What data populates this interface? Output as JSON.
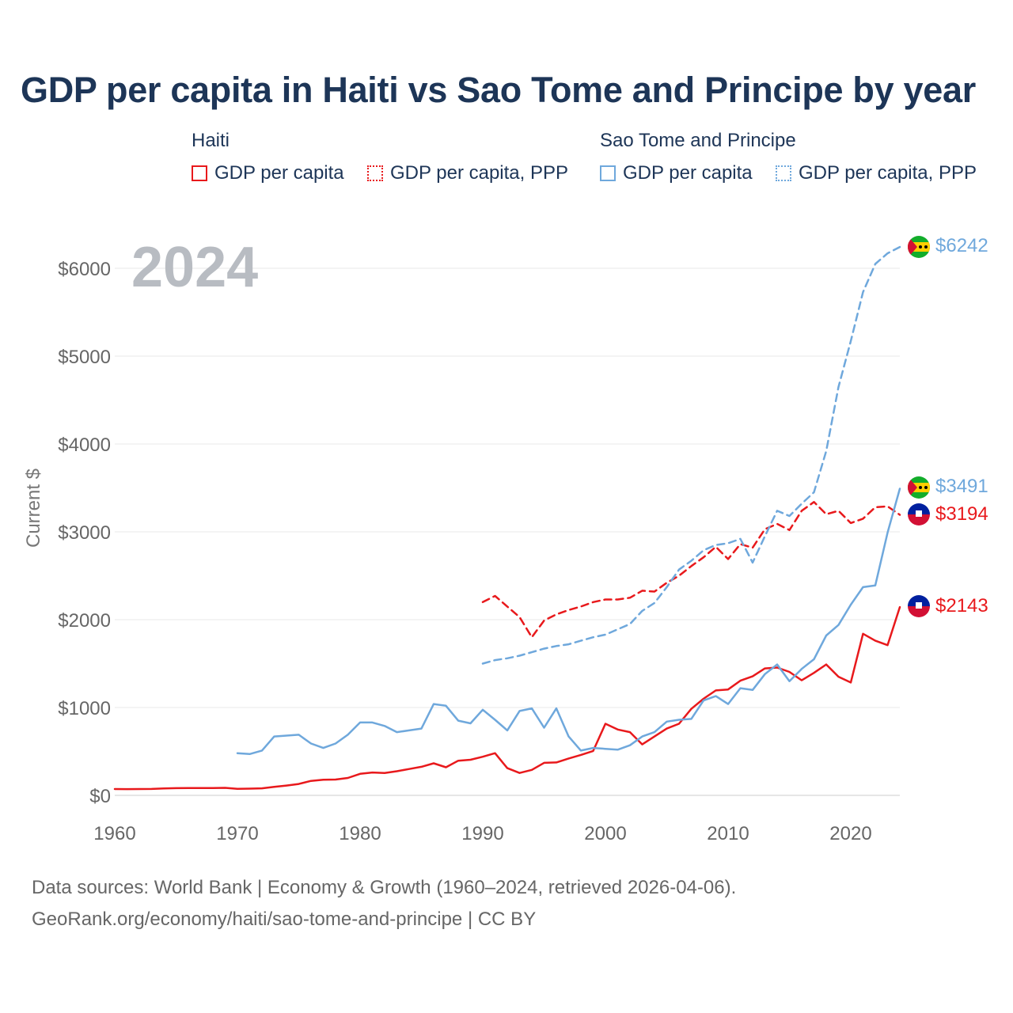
{
  "title": "GDP per capita in Haiti vs Sao Tome and Principe by year",
  "legend": {
    "groups": [
      {
        "name": "Haiti",
        "items": [
          {
            "label": "GDP per capita",
            "style": "solid",
            "color": "#e8191c"
          },
          {
            "label": "GDP per capita, PPP",
            "style": "dotted",
            "color": "#e8191c"
          }
        ]
      },
      {
        "name": "Sao Tome and Principe",
        "items": [
          {
            "label": "GDP per capita",
            "style": "solid",
            "color": "#6fa8dc"
          },
          {
            "label": "GDP per capita, PPP",
            "style": "dotted",
            "color": "#6fa8dc"
          }
        ]
      }
    ]
  },
  "source": {
    "line1": "Data sources: World Bank | Economy & Growth (1960–2024, retrieved 2026-04-06).",
    "line2": "GeoRank.org/economy/haiti/sao-tome-and-principe | CC BY"
  },
  "chart_data": {
    "type": "line",
    "title": "GDP per capita in Haiti vs Sao Tome and Principe by year",
    "year_label": "2024",
    "xlabel": "",
    "ylabel": "Current $",
    "xlim": [
      1960,
      2024
    ],
    "ylim": [
      0,
      6400
    ],
    "x_ticks": [
      1960,
      1970,
      1980,
      1990,
      2000,
      2010,
      2020
    ],
    "y_ticks": [
      0,
      1000,
      2000,
      3000,
      4000,
      5000,
      6000
    ],
    "y_tick_labels": [
      "$0",
      "$1000",
      "$2000",
      "$3000",
      "$4000",
      "$5000",
      "$6000"
    ],
    "grid": true,
    "series": [
      {
        "name": "Haiti GDP per capita",
        "color": "#e8191c",
        "dashed": false,
        "end_label": "$2143",
        "x": [
          1960,
          1961,
          1962,
          1963,
          1964,
          1965,
          1966,
          1967,
          1968,
          1969,
          1970,
          1971,
          1972,
          1973,
          1974,
          1975,
          1976,
          1977,
          1978,
          1979,
          1980,
          1981,
          1982,
          1983,
          1984,
          1985,
          1986,
          1987,
          1988,
          1989,
          1990,
          1991,
          1992,
          1993,
          1994,
          1995,
          1996,
          1997,
          1998,
          1999,
          2000,
          2001,
          2002,
          2003,
          2004,
          2005,
          2006,
          2007,
          2008,
          2009,
          2010,
          2011,
          2012,
          2013,
          2014,
          2015,
          2016,
          2017,
          2018,
          2019,
          2020,
          2021,
          2022,
          2023,
          2024
        ],
        "values": [
          72,
          71,
          72,
          73,
          78,
          82,
          84,
          83,
          84,
          86,
          74,
          77,
          80,
          96,
          112,
          130,
          165,
          178,
          180,
          198,
          245,
          260,
          255,
          275,
          300,
          325,
          365,
          320,
          395,
          405,
          440,
          480,
          310,
          255,
          290,
          370,
          375,
          420,
          460,
          505,
          815,
          750,
          720,
          580,
          670,
          760,
          815,
          985,
          1100,
          1195,
          1205,
          1305,
          1355,
          1445,
          1455,
          1405,
          1310,
          1395,
          1490,
          1350,
          1285,
          1840,
          1760,
          1710,
          2143
        ]
      },
      {
        "name": "Haiti GDP per capita, PPP",
        "color": "#e8191c",
        "dashed": true,
        "end_label": "$3194",
        "x": [
          1990,
          1991,
          1992,
          1993,
          1994,
          1995,
          1996,
          1997,
          1998,
          1999,
          2000,
          2001,
          2002,
          2003,
          2004,
          2005,
          2006,
          2007,
          2008,
          2009,
          2010,
          2011,
          2012,
          2013,
          2014,
          2015,
          2016,
          2017,
          2018,
          2019,
          2020,
          2021,
          2022,
          2023,
          2024
        ],
        "values": [
          2200,
          2270,
          2150,
          2030,
          1800,
          1990,
          2060,
          2110,
          2150,
          2200,
          2230,
          2230,
          2250,
          2330,
          2320,
          2420,
          2500,
          2610,
          2710,
          2830,
          2690,
          2860,
          2820,
          3030,
          3090,
          3020,
          3240,
          3340,
          3200,
          3240,
          3100,
          3150,
          3280,
          3290,
          3194
        ]
      },
      {
        "name": "Sao Tome and Principe GDP per capita",
        "color": "#6fa8dc",
        "dashed": false,
        "end_label": "$3491",
        "x": [
          1970,
          1971,
          1972,
          1973,
          1974,
          1975,
          1976,
          1977,
          1978,
          1979,
          1980,
          1981,
          1982,
          1983,
          1984,
          1985,
          1986,
          1987,
          1988,
          1989,
          1990,
          1991,
          1992,
          1993,
          1994,
          1995,
          1996,
          1997,
          1998,
          1999,
          2000,
          2001,
          2002,
          2003,
          2004,
          2005,
          2006,
          2007,
          2008,
          2009,
          2010,
          2011,
          2012,
          2013,
          2014,
          2015,
          2016,
          2017,
          2018,
          2019,
          2020,
          2021,
          2022,
          2023,
          2024
        ],
        "values": [
          480,
          470,
          510,
          670,
          680,
          690,
          590,
          540,
          590,
          690,
          830,
          830,
          790,
          720,
          740,
          760,
          1040,
          1020,
          850,
          820,
          975,
          860,
          740,
          960,
          990,
          770,
          990,
          670,
          510,
          540,
          530,
          520,
          570,
          670,
          720,
          840,
          860,
          870,
          1080,
          1130,
          1040,
          1220,
          1200,
          1380,
          1490,
          1300,
          1440,
          1550,
          1820,
          1940,
          2170,
          2370,
          2390,
          2990,
          3491
        ]
      },
      {
        "name": "Sao Tome and Principe GDP per capita, PPP",
        "color": "#6fa8dc",
        "dashed": true,
        "end_label": "$6242",
        "x": [
          1990,
          1991,
          1992,
          1993,
          1994,
          1995,
          1996,
          1997,
          1998,
          1999,
          2000,
          2001,
          2002,
          2003,
          2004,
          2005,
          2006,
          2007,
          2008,
          2009,
          2010,
          2011,
          2012,
          2013,
          2014,
          2015,
          2016,
          2017,
          2018,
          2019,
          2020,
          2021,
          2022,
          2023,
          2024
        ],
        "values": [
          1500,
          1540,
          1560,
          1590,
          1630,
          1670,
          1700,
          1720,
          1760,
          1800,
          1830,
          1890,
          1950,
          2100,
          2190,
          2370,
          2570,
          2670,
          2790,
          2850,
          2870,
          2920,
          2650,
          2950,
          3240,
          3180,
          3320,
          3450,
          3920,
          4650,
          5170,
          5730,
          6050,
          6170,
          6242
        ]
      }
    ]
  }
}
